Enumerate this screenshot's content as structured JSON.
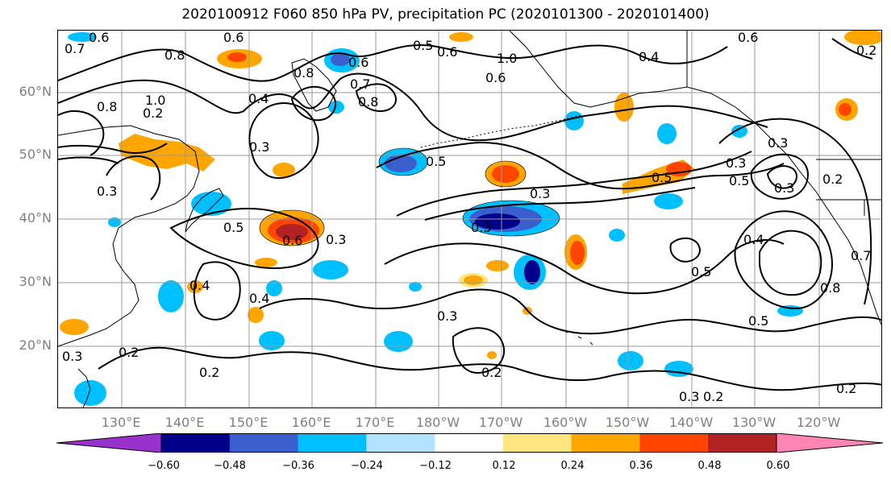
{
  "title": "2020100912 F060 850 hPa PV, precipitation PC (2020101300 - 2020101400)",
  "lat_labels": [
    "60°N",
    "50°N",
    "40°N",
    "30°N",
    "20°N"
  ],
  "lon_labels": [
    "130°E",
    "140°E",
    "150°E",
    "160°E",
    "170°E",
    "180°W",
    "170°W",
    "160°W",
    "150°W",
    "140°W",
    "130°W",
    "120°W"
  ],
  "colorbar": {
    "ticks": [
      "−0.60",
      "−0.48",
      "−0.36",
      "−0.24",
      "−0.12",
      "0.12",
      "0.24",
      "0.36",
      "0.48",
      "0.60"
    ],
    "colors": [
      "#9932cc",
      "#00008b",
      "#3a5fcd",
      "#00bfff",
      "#b2e2ff",
      "#ffffff",
      "#ffe680",
      "#ffa500",
      "#ff4500",
      "#b22222",
      "#ff86b4"
    ]
  },
  "contour_labels": [
    "0.6",
    "0.7",
    "0.8",
    "0.8",
    "1.0",
    "0.8",
    "0.7",
    "0.8",
    "0.6",
    "0.6",
    "1.0",
    "0.6",
    "0.4",
    "0.6",
    "0.6",
    "0.5",
    "0.4",
    "0.3",
    "0.2",
    "0.3",
    "0.5",
    "0.3",
    "0.5",
    "0.5",
    "0.3",
    "0.6",
    "0.3",
    "0.4",
    "0.3",
    "0.4",
    "0.2",
    "0.2",
    "0.3",
    "0.2",
    "0.3",
    "0.2",
    "0.5",
    "0.2",
    "0.5",
    "0.4",
    "0.3",
    "0.5",
    "0.3",
    "0.2",
    "0.8",
    "0.7",
    "0.3",
    "0.2"
  ]
}
